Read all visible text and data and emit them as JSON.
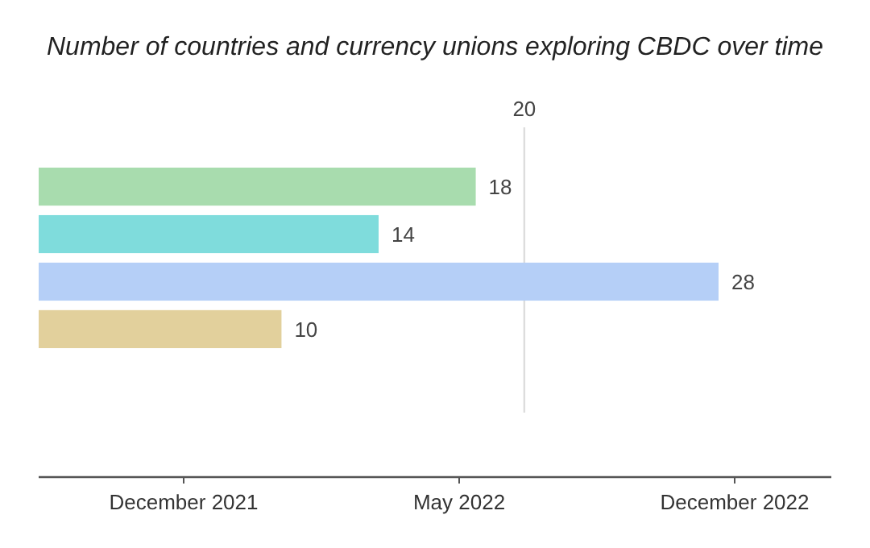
{
  "chart_data": {
    "type": "bar",
    "orientation": "horizontal",
    "title": "Number of countries and currency unions exploring CBDC over time",
    "categories": [
      null,
      null,
      null,
      null
    ],
    "values": [
      18,
      14,
      28,
      10
    ],
    "colors": [
      "#a8dcae",
      "#7fdcdc",
      "#b5cff7",
      "#e2d09c"
    ],
    "data_labels": true,
    "annotations": [
      "December 2021",
      "May 2022",
      "December 2022"
    ],
    "ref_lines": [
      {
        "axis": "x",
        "value": 20,
        "label": "20",
        "color": "#dddddd"
      }
    ]
  }
}
